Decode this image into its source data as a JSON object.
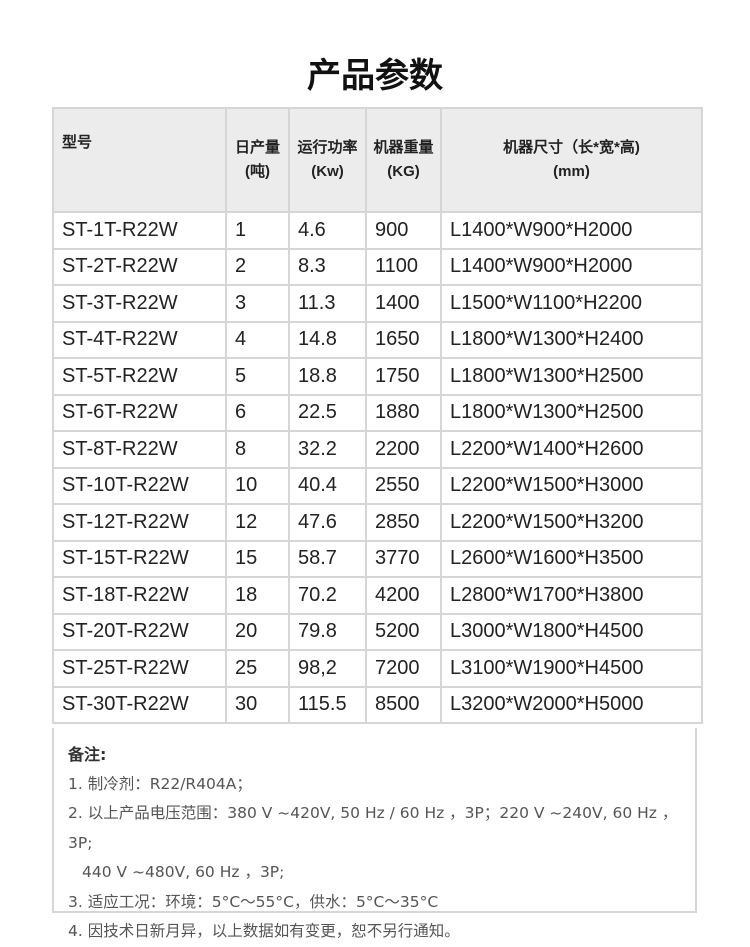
{
  "title": "产品参数",
  "headers": [
    {
      "l1": "型号",
      "l2": ""
    },
    {
      "l1": "日产量",
      "l2": "(吨)"
    },
    {
      "l1": "运行功率",
      "l2": "(Kw)"
    },
    {
      "l1": "机器重量",
      "l2": "(KG)"
    },
    {
      "l1": "机器尺寸（长*宽*高)",
      "l2": "(mm)"
    }
  ],
  "rows": [
    [
      "ST-1T-R22W",
      "1",
      "4.6",
      "900",
      "L1400*W900*H2000"
    ],
    [
      "ST-2T-R22W",
      "2",
      "8.3",
      "1100",
      "L1400*W900*H2000"
    ],
    [
      "ST-3T-R22W",
      "3",
      "11.3",
      "1400",
      "L1500*W1100*H2200"
    ],
    [
      "ST-4T-R22W",
      "4",
      "14.8",
      "1650",
      "L1800*W1300*H2400"
    ],
    [
      "ST-5T-R22W",
      "5",
      "18.8",
      "1750",
      "L1800*W1300*H2500"
    ],
    [
      "ST-6T-R22W",
      "6",
      "22.5",
      "1880",
      "L1800*W1300*H2500"
    ],
    [
      "ST-8T-R22W",
      "8",
      "32.2",
      "2200",
      "L2200*W1400*H2600"
    ],
    [
      "ST-10T-R22W",
      "10",
      "40.4",
      "2550",
      "L2200*W1500*H3000"
    ],
    [
      "ST-12T-R22W",
      "12",
      "47.6",
      "2850",
      "L2200*W1500*H3200"
    ],
    [
      "ST-15T-R22W",
      "15",
      "58.7",
      "3770",
      "L2600*W1600*H3500"
    ],
    [
      "ST-18T-R22W",
      "18",
      "70.2",
      "4200",
      "L2800*W1700*H3800"
    ],
    [
      "ST-20T-R22W",
      "20",
      "79.8",
      "5200",
      "L3000*W1800*H4500"
    ],
    [
      "ST-25T-R22W",
      "25",
      "98,2",
      "7200",
      "L3100*W1900*H4500"
    ],
    [
      "ST-30T-R22W",
      "30",
      "115.5",
      "8500",
      "L3200*W2000*H5000"
    ]
  ],
  "notes": {
    "title": "备注:",
    "lines": [
      "1. 制冷剂：R22/R404A；",
      "2. 以上产品电压范围：380 V ~420V, 50 Hz / 60 Hz ，3P；220 V ~240V, 60 Hz ，3P;",
      "440 V ~480V, 60 Hz ，3P;",
      "3. 适应工况：环境：5°C～55°C，供水：5°C～35°C",
      "4. 因技术日新月异，以上数据如有变更，恕不另行通知。"
    ]
  }
}
